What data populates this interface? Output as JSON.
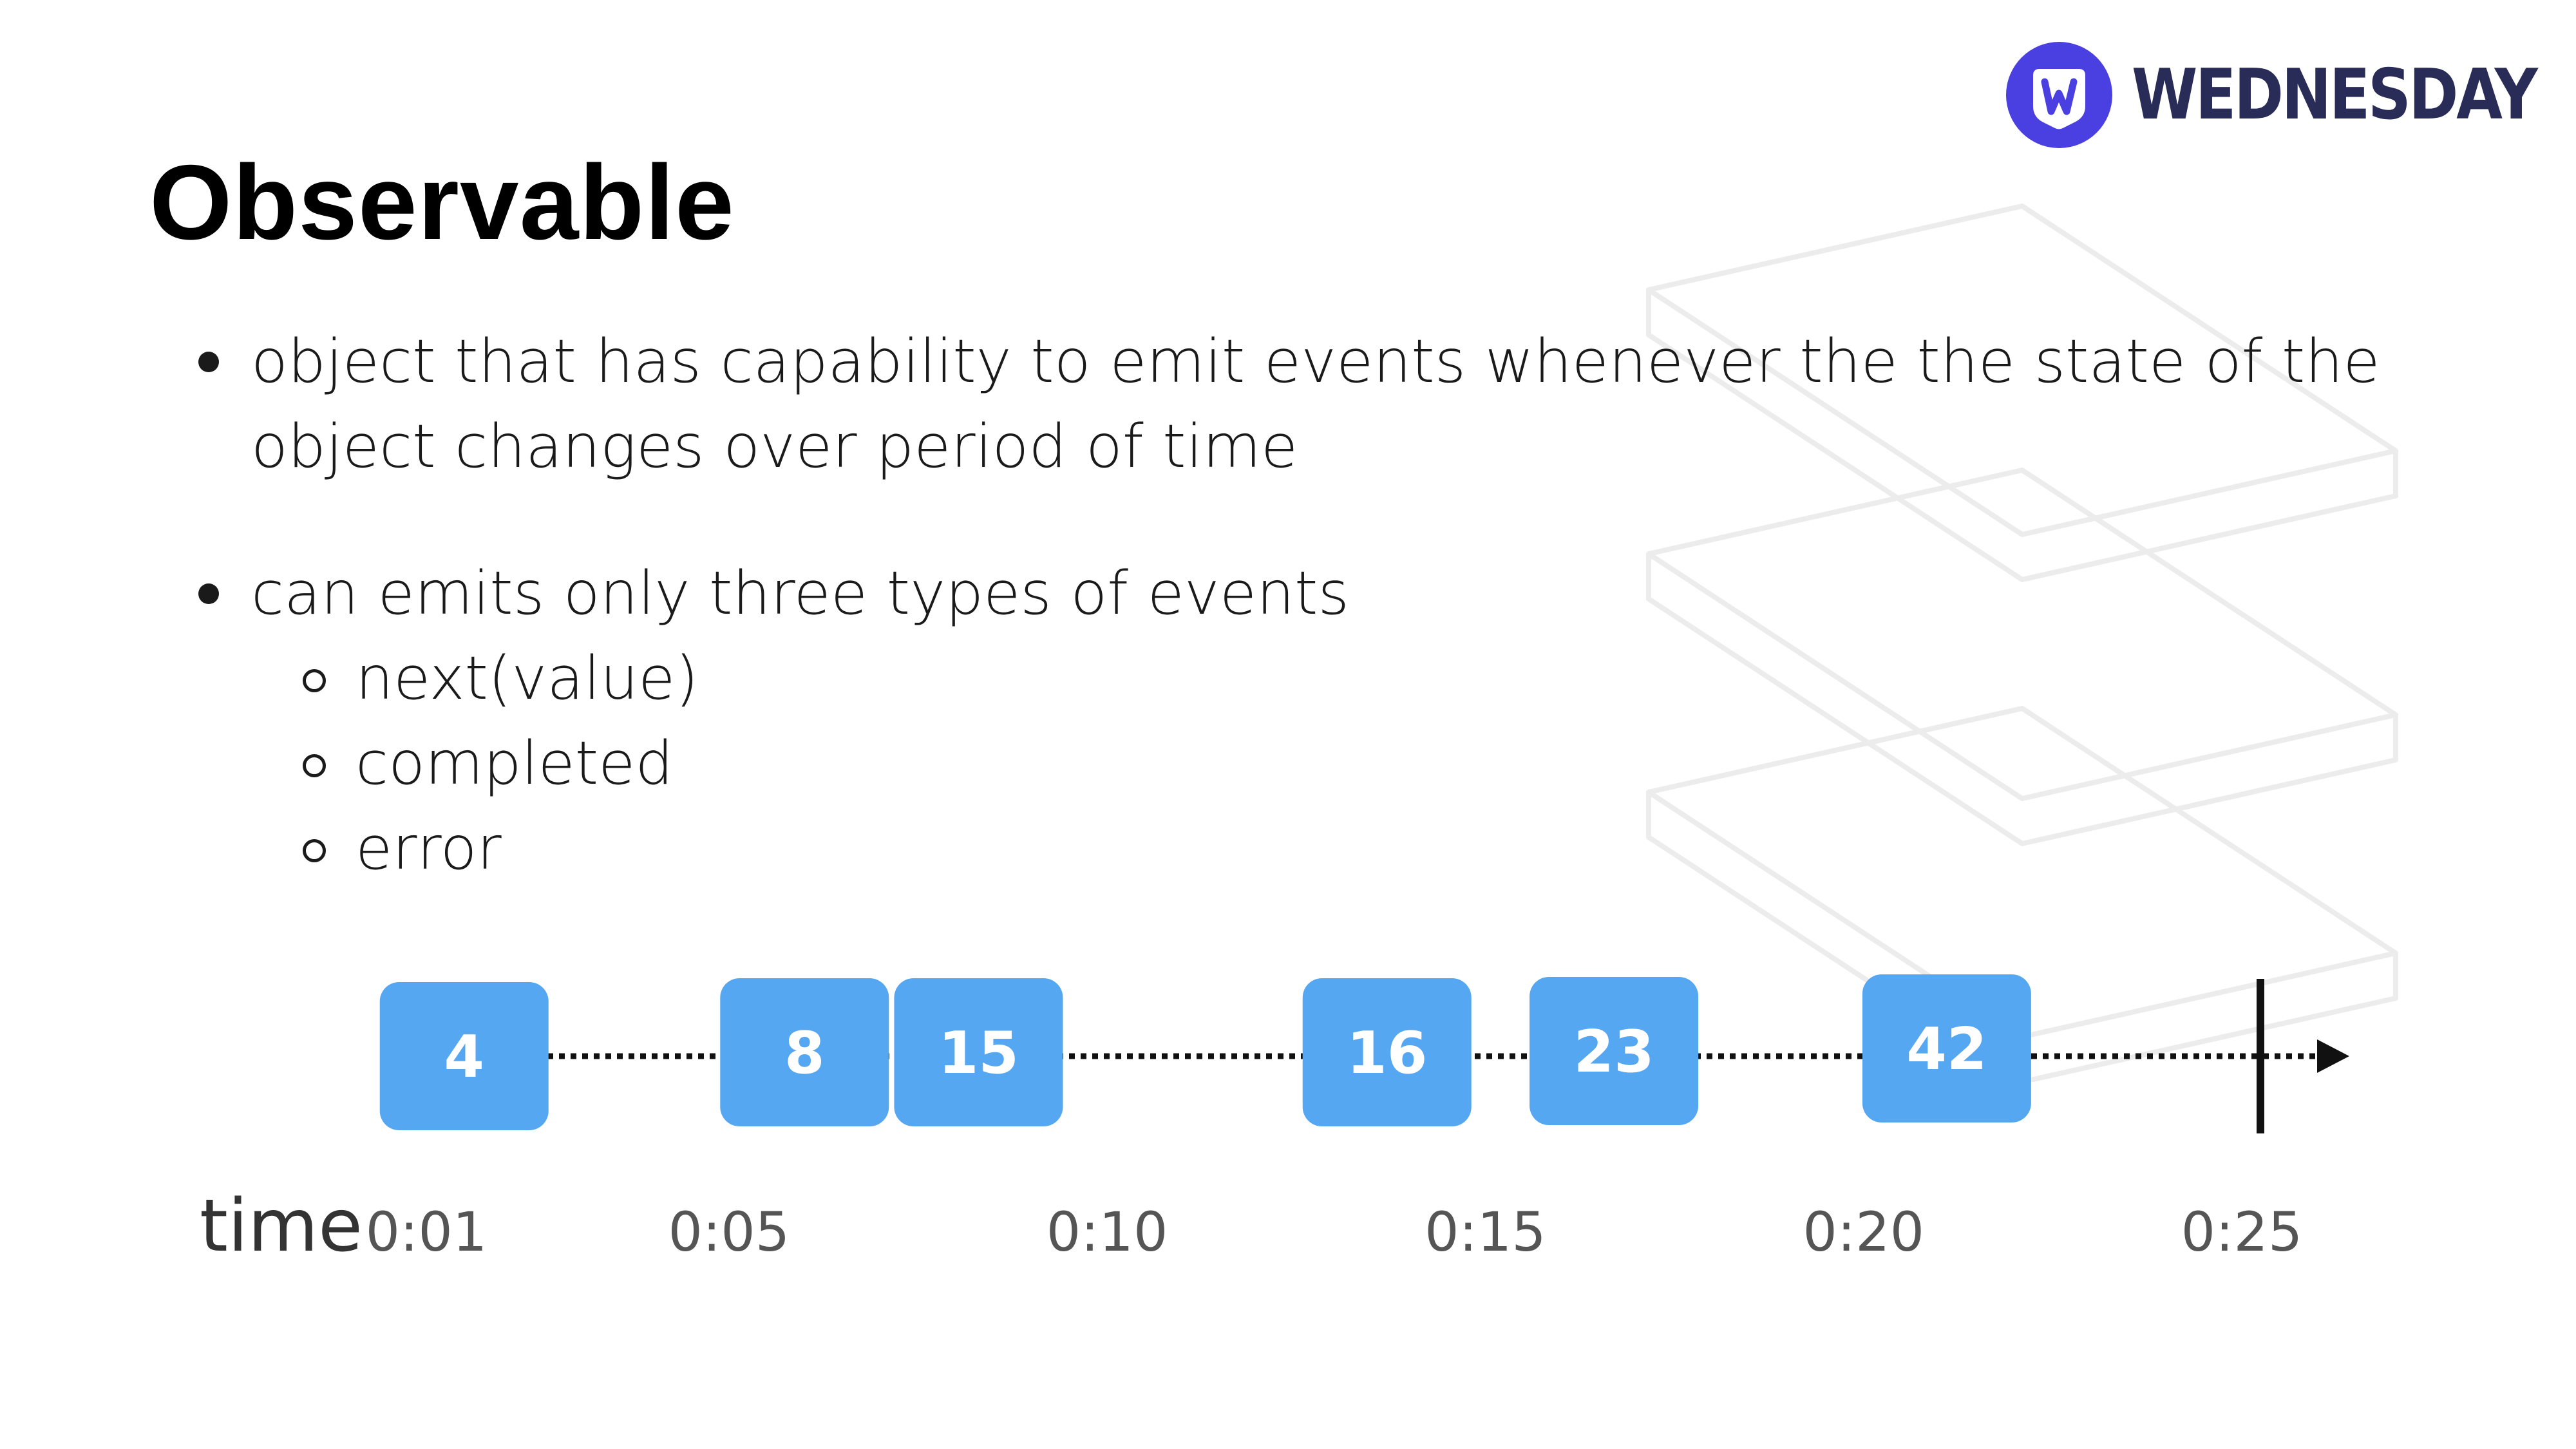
{
  "slide": {
    "title": "Observable",
    "bullets": [
      {
        "text": "object that has capability to emit events whenever the the state of the object changes over period of time"
      },
      {
        "text": "can emits only three types of events",
        "subitems": [
          "next(value)",
          "completed",
          "error"
        ]
      }
    ]
  },
  "brand": {
    "name": "WEDNESDAY",
    "logo_icon": "w-shield-icon",
    "colors": {
      "mark": "#4a3fe0",
      "wordmark": "#2a2c58"
    }
  },
  "chart_data": {
    "type": "timeline",
    "xlabel": "time",
    "x_ticks": [
      "0:01",
      "0:05",
      "0:10",
      "0:15",
      "0:20",
      "0:25"
    ],
    "events": [
      {
        "value": "4",
        "time": 1.5
      },
      {
        "value": "8",
        "time": 6.0
      },
      {
        "value": "15",
        "time": 8.3
      },
      {
        "value": "16",
        "time": 13.7
      },
      {
        "value": "23",
        "time": 16.7
      },
      {
        "value": "42",
        "time": 21.1
      }
    ],
    "completion_time": 25,
    "colors": {
      "event": "#55a7f1",
      "line": "#111111"
    }
  }
}
